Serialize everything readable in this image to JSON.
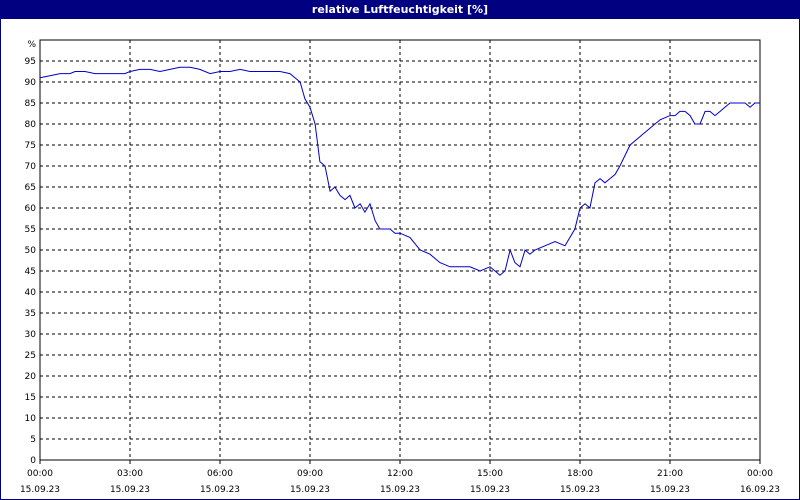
{
  "window": {
    "title": "relative Luftfeuchtigkeit [%]"
  },
  "colors": {
    "titlebar": "#000080",
    "line": "#0000cc",
    "grid": "#000000"
  },
  "chart_data": {
    "type": "line",
    "title": "relative Luftfeuchtigkeit [%]",
    "ylabel": "%",
    "xlabel": "",
    "ylim": [
      0,
      100
    ],
    "y_ticks": [
      0,
      5,
      10,
      15,
      20,
      25,
      30,
      35,
      40,
      45,
      50,
      55,
      60,
      65,
      70,
      75,
      80,
      85,
      90,
      95
    ],
    "xlim_hours": [
      0,
      24
    ],
    "x_ticks": [
      {
        "time": "00:00",
        "date": "15.09.23"
      },
      {
        "time": "03:00",
        "date": "15.09.23"
      },
      {
        "time": "06:00",
        "date": "15.09.23"
      },
      {
        "time": "09:00",
        "date": "15.09.23"
      },
      {
        "time": "12:00",
        "date": "15.09.23"
      },
      {
        "time": "15:00",
        "date": "15.09.23"
      },
      {
        "time": "18:00",
        "date": "15.09.23"
      },
      {
        "time": "21:00",
        "date": "15.09.23"
      },
      {
        "time": "00:00",
        "date": "16.09.23"
      }
    ],
    "grid": true,
    "series": [
      {
        "x": [
          0,
          0.33,
          0.67,
          1.0,
          1.17,
          1.5,
          1.83,
          2.17,
          2.5,
          2.83,
          3.0,
          3.33,
          3.67,
          4.0,
          4.33,
          4.67,
          5.0,
          5.33,
          5.67,
          6.0,
          6.33,
          6.67,
          7.0,
          7.33,
          7.67,
          8.0,
          8.33,
          8.67,
          8.83,
          9.0,
          9.17,
          9.33,
          9.5,
          9.67,
          9.83,
          10.0,
          10.17,
          10.33,
          10.5,
          10.67,
          10.83,
          11.0,
          11.17,
          11.33,
          11.5,
          11.67,
          11.83,
          12.0,
          12.33,
          12.67,
          13.0,
          13.33,
          13.67,
          14.0,
          14.33,
          14.67,
          15.0,
          15.17,
          15.33,
          15.5,
          15.67,
          15.83,
          16.0,
          16.17,
          16.33,
          16.5,
          16.83,
          17.17,
          17.5,
          17.83,
          18.0,
          18.17,
          18.33,
          18.5,
          18.67,
          18.83,
          19.0,
          19.17,
          19.33,
          19.67,
          20.0,
          20.33,
          20.67,
          21.0,
          21.17,
          21.33,
          21.5,
          21.67,
          21.83,
          22.0,
          22.17,
          22.33,
          22.5,
          22.67,
          22.83,
          23.0,
          23.17,
          23.33,
          23.5,
          23.67,
          23.83,
          24.0
        ],
        "y": [
          91,
          91.5,
          92,
          92,
          92.5,
          92.5,
          92,
          92,
          92,
          92,
          92.5,
          93,
          93,
          92.5,
          93,
          93.5,
          93.5,
          93,
          92,
          92.5,
          92.5,
          93,
          92.5,
          92.5,
          92.5,
          92.5,
          92,
          90,
          86,
          84,
          80,
          71,
          70,
          64,
          65,
          63,
          62,
          63,
          60,
          61,
          59,
          61,
          57,
          55,
          55,
          55,
          54,
          54,
          53,
          50,
          49,
          47,
          46,
          46,
          46,
          45,
          46,
          45,
          44,
          45,
          50,
          47,
          46,
          50,
          49,
          50,
          51,
          52,
          51,
          55,
          60,
          61,
          60,
          66,
          67,
          66,
          67,
          68,
          70,
          75,
          77,
          79,
          81,
          82,
          82,
          83,
          83,
          82,
          80,
          80,
          83,
          83,
          82,
          83,
          84,
          85,
          85,
          85,
          85,
          84,
          85,
          85
        ]
      }
    ]
  }
}
